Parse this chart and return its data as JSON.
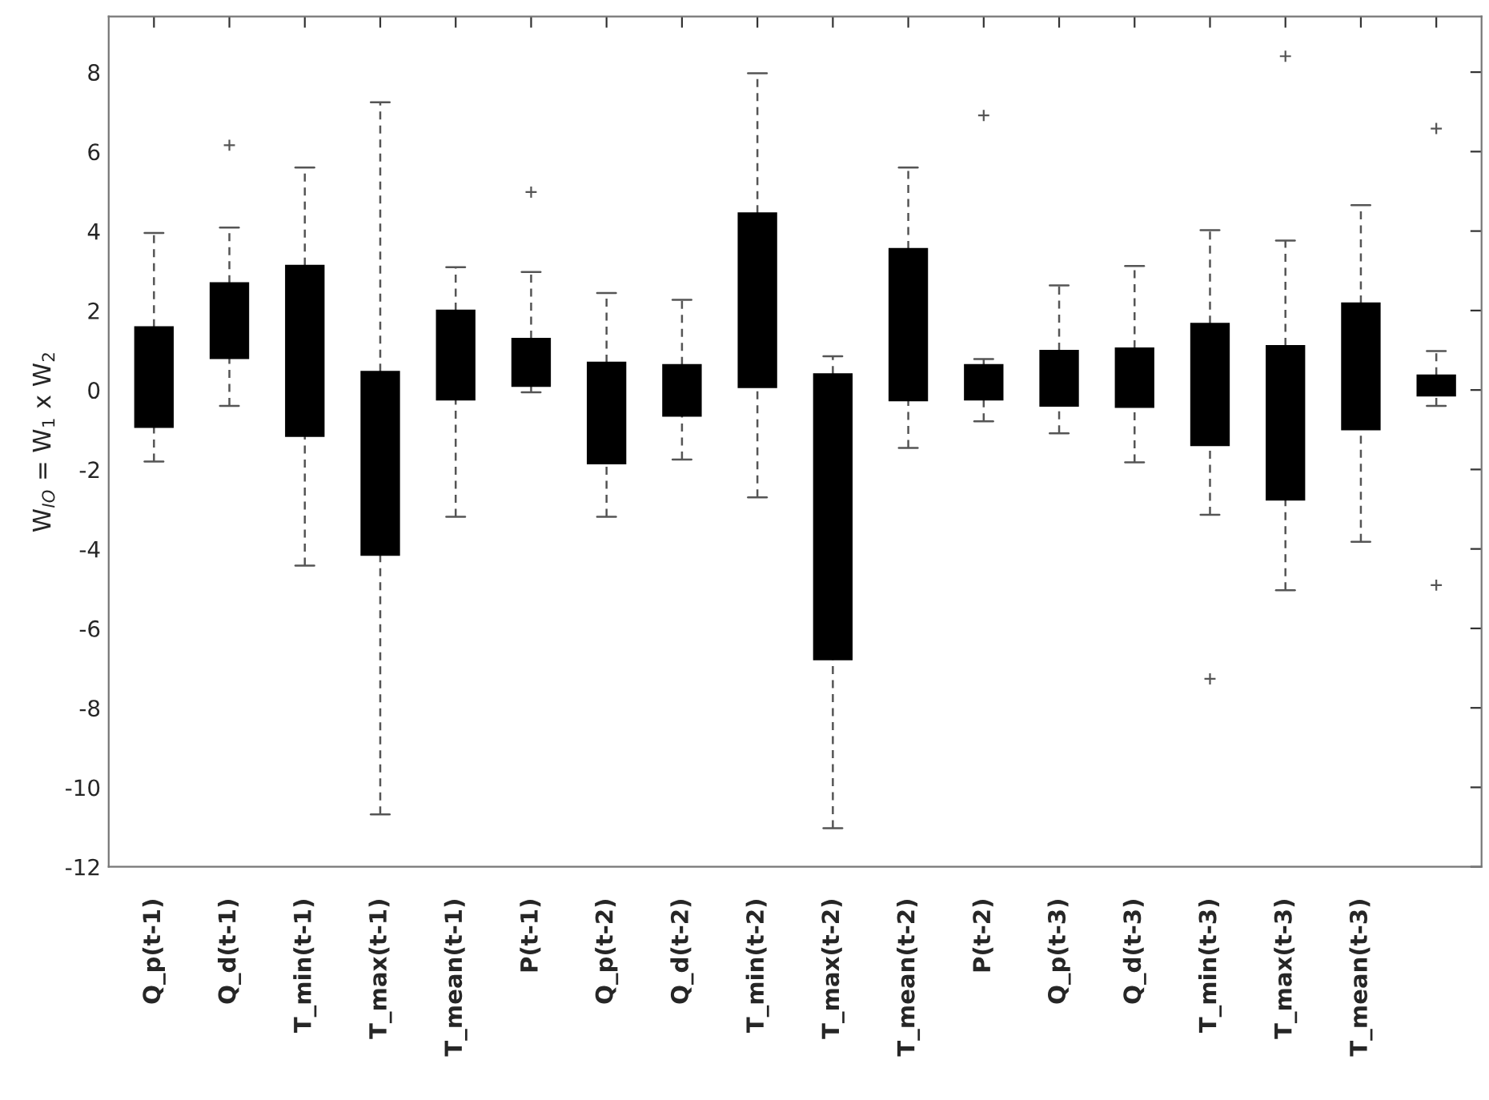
{
  "chart_data": {
    "type": "box",
    "ylabel": "W$_{IO}$ = W$_{1}$ x W$_{2}$",
    "categories": [
      "Q_p(t-1)",
      "Q_d(t-1)",
      "T_min(t-1)",
      "T_max(t-1)",
      "T_mean(t-1)",
      "P(t-1)",
      "Q_p(t-2)",
      "Q_d(t-2)",
      "T_min(t-2)",
      "T_max(t-2)",
      "T_mean(t-2)",
      "P(t-2)",
      "Q_p(t-3)",
      "Q_d(t-3)",
      "T_min(t-3)",
      "T_max(t-3)",
      "T_mean(t-3)",
      null
    ],
    "color": "#000000",
    "boxes": [
      {
        "low": -1.8,
        "q1": -0.93,
        "median": null,
        "q3": 1.58,
        "high": 3.95
      },
      {
        "low": -0.4,
        "q1": 0.8,
        "median": null,
        "q3": 2.69,
        "high": 4.09,
        "outliers": [
          6.16
        ]
      },
      {
        "low": -4.42,
        "q1": -1.16,
        "median": null,
        "q3": 3.13,
        "high": 5.6
      },
      {
        "low": -10.68,
        "q1": -4.15,
        "median": null,
        "q3": 0.46,
        "high": 7.24
      },
      {
        "low": -3.19,
        "q1": -0.24,
        "median": null,
        "q3": 2.0,
        "high": 3.09
      },
      {
        "low": -0.06,
        "q1": 0.1,
        "median": null,
        "q3": 1.29,
        "high": 2.97,
        "outliers": [
          4.98
        ]
      },
      {
        "low": -3.19,
        "q1": -1.85,
        "median": null,
        "q3": 0.69,
        "high": 2.44
      },
      {
        "low": -1.75,
        "q1": -0.65,
        "median": null,
        "q3": 0.63,
        "high": 2.27
      },
      {
        "low": -2.7,
        "q1": 0.07,
        "median": null,
        "q3": 4.45,
        "high": 7.97
      },
      {
        "low": -11.03,
        "q1": -6.78,
        "median": null,
        "q3": 0.4,
        "high": 0.85
      },
      {
        "low": -1.46,
        "q1": -0.26,
        "median": null,
        "q3": 3.55,
        "high": 5.6
      },
      {
        "low": -0.79,
        "q1": -0.24,
        "median": null,
        "q3": 0.63,
        "high": 0.78,
        "outliers": [
          6.91
        ]
      },
      {
        "low": -1.09,
        "q1": -0.4,
        "median": null,
        "q3": 0.99,
        "high": 2.63
      },
      {
        "low": -1.82,
        "q1": -0.43,
        "median": null,
        "q3": 1.05,
        "high": 3.12
      },
      {
        "low": -3.14,
        "q1": -1.39,
        "median": null,
        "q3": 1.67,
        "high": 4.02,
        "outliers": [
          -7.27
        ]
      },
      {
        "low": -5.04,
        "q1": -2.76,
        "median": null,
        "q3": 1.11,
        "high": 3.76,
        "outliers": [
          8.4
        ]
      },
      {
        "low": -3.82,
        "q1": -0.99,
        "median": null,
        "q3": 2.18,
        "high": 4.65
      },
      {
        "low": -0.4,
        "q1": -0.14,
        "median": null,
        "q3": 0.37,
        "high": 0.98,
        "outliers": [
          6.58,
          -4.91
        ]
      }
    ],
    "ylim": [
      -12,
      9.4
    ],
    "yticks": [
      -12,
      -10,
      -8,
      -6,
      -4,
      -2,
      0,
      2,
      4,
      6,
      8
    ],
    "line_style": "dashed",
    "marker": "cross",
    "grid": false,
    "legend": false
  }
}
